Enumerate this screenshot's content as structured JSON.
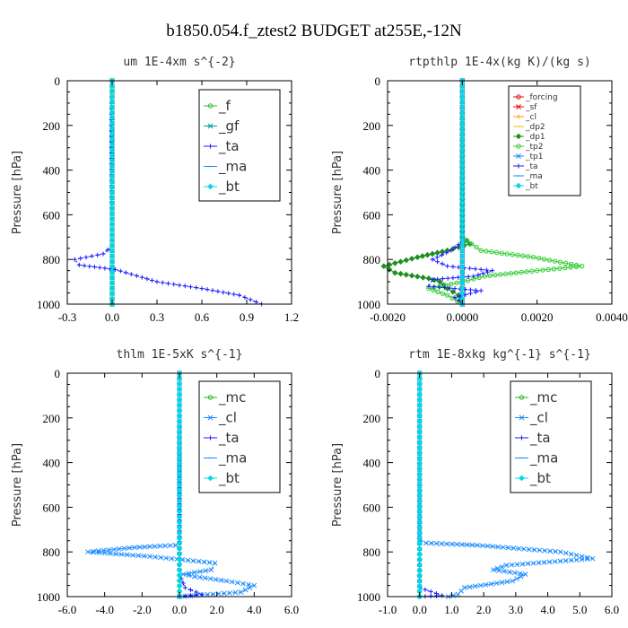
{
  "figure_title": "b1850.054.f_ztest2  BUDGET at255E,-12N",
  "colors": {
    "green": "#22bb22",
    "blue": "#1a1aff",
    "sky": "#1a8cff",
    "cyan": "#00d8e8",
    "red": "#dd1100",
    "orange": "#ff9900",
    "yellow": "#e8c800",
    "dkgreen": "#1e8f1e",
    "lime": "#33cc33",
    "teal": "#009999"
  },
  "chart_data": [
    {
      "type": "line",
      "title": "um  1E-4xm s^{-2}",
      "ylabel": "Pressure [hPa]",
      "xlim": [
        -0.3,
        1.2
      ],
      "ylim": [
        1000,
        0
      ],
      "xticks": [
        "-0.3",
        "0.0",
        "0.3",
        "0.6",
        "0.9",
        "1.2"
      ],
      "xtick_values": [
        -0.3,
        0.0,
        0.3,
        0.6,
        0.9,
        1.2
      ],
      "yticks": [
        "0",
        "200",
        "400",
        "600",
        "800",
        "1000"
      ],
      "ytick_values": [
        0,
        200,
        400,
        600,
        800,
        1000
      ],
      "legend_size": "large",
      "series": [
        {
          "name": "_f",
          "color": "#22bb22",
          "dash": "none",
          "points": [
            [
              0,
              0
            ],
            [
              0,
              1000
            ]
          ]
        },
        {
          "name": "_gf",
          "color": "#009999",
          "dash": "none",
          "points": [
            [
              0,
              0
            ],
            [
              0,
              1000
            ]
          ]
        },
        {
          "name": "_ta",
          "color": "#1a1aff",
          "dash": "dotted",
          "points": [
            [
              0,
              0
            ],
            [
              -0.005,
              200
            ],
            [
              0,
              740
            ],
            [
              -0.06,
              775
            ],
            [
              -0.25,
              800
            ],
            [
              -0.22,
              825
            ],
            [
              0.02,
              845
            ],
            [
              0.2,
              880
            ],
            [
              0.3,
              900
            ],
            [
              0.6,
              930
            ],
            [
              0.85,
              960
            ],
            [
              1.0,
              1000
            ]
          ]
        },
        {
          "name": "_ma",
          "color": "#1a8cff",
          "dash": "none",
          "points": [
            [
              0,
              0
            ],
            [
              0,
              1000
            ]
          ]
        },
        {
          "name": "_bt",
          "color": "#00d8e8",
          "dash": "none",
          "points": [
            [
              0,
              0
            ],
            [
              0,
              1000
            ]
          ]
        }
      ]
    },
    {
      "type": "line",
      "title": "rtpthlp  1E-4x(kg K)/(kg s)",
      "ylabel": "Pressure [hPa]",
      "xlim": [
        -0.002,
        0.004
      ],
      "ylim": [
        1000,
        0
      ],
      "xticks": [
        "-0.0020",
        "0.0000",
        "0.0020",
        "0.0040"
      ],
      "xtick_values": [
        -0.002,
        0.0,
        0.002,
        0.004
      ],
      "yticks": [
        "0",
        "200",
        "400",
        "600",
        "800",
        "1000"
      ],
      "ytick_values": [
        0,
        200,
        400,
        600,
        800,
        1000
      ],
      "legend_size": "small",
      "series": [
        {
          "name": "_forcing",
          "color": "#dd1100",
          "dash": "none",
          "points": [
            [
              0,
              0
            ],
            [
              0,
              1000
            ]
          ]
        },
        {
          "name": "_sf",
          "color": "#dd1100",
          "dash": "none",
          "points": [
            [
              0,
              0
            ],
            [
              0,
              1000
            ]
          ]
        },
        {
          "name": "_cl",
          "color": "#ff9900",
          "dash": "none",
          "points": [
            [
              0,
              0
            ],
            [
              0,
              1000
            ]
          ]
        },
        {
          "name": "_dp2",
          "color": "#e8c800",
          "dash": "none",
          "points": [
            [
              0,
              0
            ],
            [
              0,
              1000
            ]
          ]
        },
        {
          "name": "_dp1",
          "color": "#1e8f1e",
          "dash": "none",
          "points": [
            [
              0,
              0
            ],
            [
              0,
              700
            ],
            [
              0.0002,
              730
            ],
            [
              -0.0004,
              760
            ],
            [
              -0.0012,
              790
            ],
            [
              -0.0021,
              830
            ],
            [
              -0.0018,
              860
            ],
            [
              -0.0009,
              885
            ],
            [
              -0.0006,
              900
            ],
            [
              -0.0004,
              930
            ],
            [
              -0.0001,
              960
            ],
            [
              0,
              1000
            ]
          ]
        },
        {
          "name": "_tp2",
          "color": "#33cc33",
          "dash": "none",
          "points": [
            [
              0,
              0
            ],
            [
              0,
              700
            ],
            [
              0.0005,
              760
            ],
            [
              0.0019,
              790
            ],
            [
              0.0032,
              830
            ],
            [
              0.002,
              850
            ],
            [
              0.0006,
              875
            ],
            [
              0,
              900
            ],
            [
              -0.0009,
              930
            ],
            [
              -0.0004,
              960
            ],
            [
              0,
              1000
            ]
          ]
        },
        {
          "name": "_tp1",
          "color": "#1a8cff",
          "dash": "none",
          "points": [
            [
              0,
              0
            ],
            [
              0,
              1000
            ]
          ]
        },
        {
          "name": "_ta",
          "color": "#1a1aff",
          "dash": "dotted",
          "points": [
            [
              0,
              0
            ],
            [
              0,
              720
            ],
            [
              -0.0003,
              760
            ],
            [
              -0.0008,
              800
            ],
            [
              -0.0004,
              830
            ],
            [
              0.0008,
              850
            ],
            [
              0.0003,
              875
            ],
            [
              -0.0008,
              890
            ],
            [
              -0.0009,
              920
            ],
            [
              0.0005,
              940
            ],
            [
              -0.0002,
              970
            ],
            [
              0,
              1000
            ]
          ]
        },
        {
          "name": "_ma",
          "color": "#1a8cff",
          "dash": "none",
          "points": [
            [
              0,
              0
            ],
            [
              0,
              1000
            ]
          ]
        },
        {
          "name": "_bt",
          "color": "#00d8e8",
          "dash": "none",
          "points": [
            [
              0,
              0
            ],
            [
              0,
              1000
            ]
          ]
        }
      ]
    },
    {
      "type": "line",
      "title": "thlm  1E-5xK s^{-1}",
      "ylabel": "Pressure [hPa]",
      "xlim": [
        -6.0,
        6.0
      ],
      "ylim": [
        1000,
        0
      ],
      "xticks": [
        "-6.0",
        "-4.0",
        "-2.0",
        "0.0",
        "2.0",
        "4.0",
        "6.0"
      ],
      "xtick_values": [
        -6,
        -4,
        -2,
        0,
        2,
        4,
        6
      ],
      "yticks": [
        "0",
        "200",
        "400",
        "600",
        "800",
        "1000"
      ],
      "ytick_values": [
        0,
        200,
        400,
        600,
        800,
        1000
      ],
      "legend_size": "large",
      "series": [
        {
          "name": "_mc",
          "color": "#22bb22",
          "dash": "none",
          "points": [
            [
              0,
              0
            ],
            [
              0,
              1000
            ]
          ]
        },
        {
          "name": "_cl",
          "color": "#1a8cff",
          "dash": "dashed",
          "points": [
            [
              0,
              0
            ],
            [
              0,
              750
            ],
            [
              -0.2,
              770
            ],
            [
              -2.4,
              780
            ],
            [
              -4.9,
              800
            ],
            [
              -1.6,
              820
            ],
            [
              1.9,
              850
            ],
            [
              1.7,
              880
            ],
            [
              0.2,
              900
            ],
            [
              0.8,
              910
            ],
            [
              2.5,
              930
            ],
            [
              4.0,
              950
            ],
            [
              3.3,
              980
            ],
            [
              0,
              1000
            ]
          ]
        },
        {
          "name": "_ta",
          "color": "#1a1aff",
          "dash": "dotted",
          "points": [
            [
              0,
              0
            ],
            [
              0,
              900
            ],
            [
              0.3,
              960
            ],
            [
              1.2,
              990
            ],
            [
              0,
              1000
            ]
          ]
        },
        {
          "name": "_ma",
          "color": "#1a8cff",
          "dash": "none",
          "points": [
            [
              0,
              0
            ],
            [
              0,
              1000
            ]
          ]
        },
        {
          "name": "_bt",
          "color": "#00d8e8",
          "dash": "none",
          "points": [
            [
              0,
              0
            ],
            [
              0,
              1000
            ]
          ]
        }
      ]
    },
    {
      "type": "line",
      "title": "rtm  1E-8xkg kg^{-1} s^{-1}",
      "ylabel": "Pressure [hPa]",
      "xlim": [
        -1.0,
        6.0
      ],
      "ylim": [
        1000,
        0
      ],
      "xticks": [
        "-1.0",
        "0.0",
        "1.0",
        "2.0",
        "3.0",
        "4.0",
        "5.0",
        "6.0"
      ],
      "xtick_values": [
        -1,
        0,
        1,
        2,
        3,
        4,
        5,
        6
      ],
      "yticks": [
        "0",
        "200",
        "400",
        "600",
        "800",
        "1000"
      ],
      "ytick_values": [
        0,
        200,
        400,
        600,
        800,
        1000
      ],
      "legend_size": "large",
      "series": [
        {
          "name": "_mc",
          "color": "#22bb22",
          "dash": "none",
          "points": [
            [
              0,
              0
            ],
            [
              0,
              1000
            ]
          ]
        },
        {
          "name": "_cl",
          "color": "#1a8cff",
          "dash": "dashed",
          "points": [
            [
              0,
              0
            ],
            [
              0,
              745
            ],
            [
              0.2,
              760
            ],
            [
              1.8,
              770
            ],
            [
              4.4,
              800
            ],
            [
              5.4,
              830
            ],
            [
              2.7,
              860
            ],
            [
              2.3,
              880
            ],
            [
              3.3,
              900
            ],
            [
              2.9,
              930
            ],
            [
              1.4,
              960
            ],
            [
              1.2,
              990
            ],
            [
              0.9,
              1000
            ]
          ]
        },
        {
          "name": "_ta",
          "color": "#1a1aff",
          "dash": "dotted",
          "points": [
            [
              0,
              0
            ],
            [
              0,
              960
            ],
            [
              0.7,
              995
            ],
            [
              0,
              1000
            ]
          ]
        },
        {
          "name": "_ma",
          "color": "#1a8cff",
          "dash": "none",
          "points": [
            [
              0,
              0
            ],
            [
              0,
              1000
            ]
          ]
        },
        {
          "name": "_bt",
          "color": "#00d8e8",
          "dash": "none",
          "points": [
            [
              0,
              0
            ],
            [
              0,
              1000
            ]
          ]
        }
      ]
    }
  ]
}
